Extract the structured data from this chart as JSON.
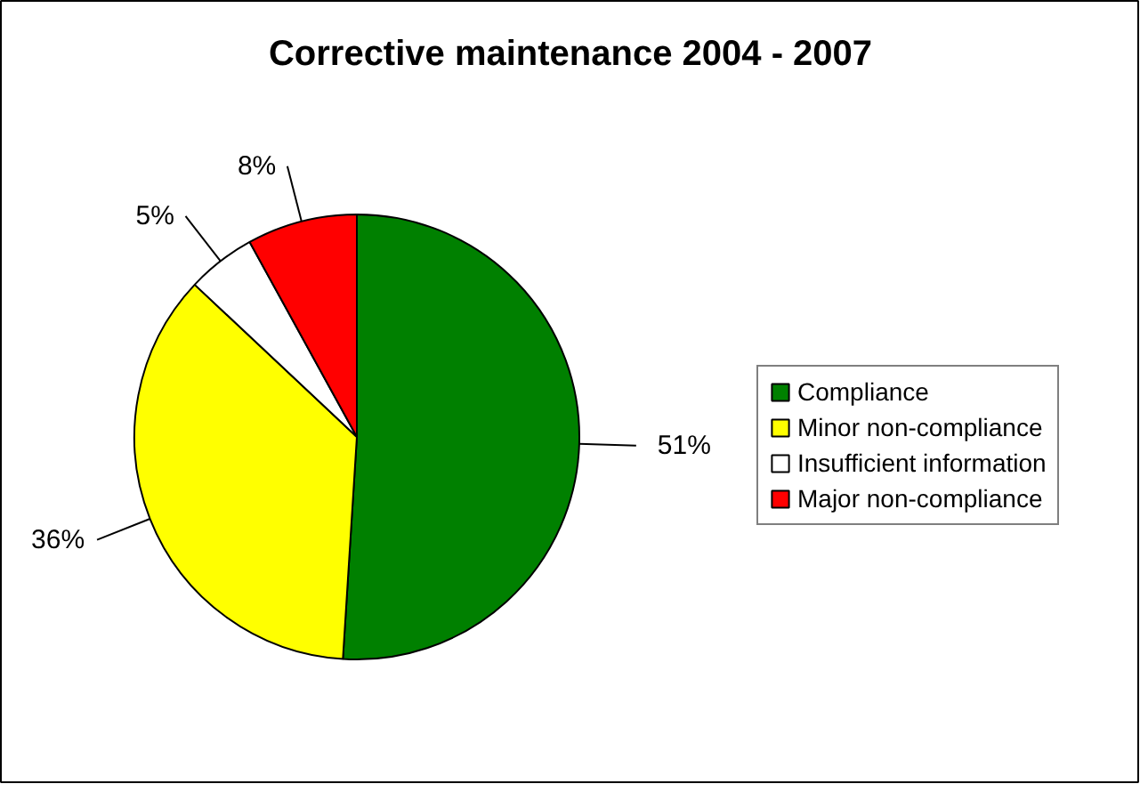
{
  "chart_data": {
    "type": "pie",
    "title": "Corrective maintenance 2004 - 2007",
    "categories": [
      "Compliance",
      "Minor non-compliance",
      "Insufficient information",
      "Major non-compliance"
    ],
    "values": [
      51,
      36,
      5,
      8
    ],
    "colors": [
      "#008000",
      "#ffff00",
      "#ffffff",
      "#ff0000"
    ],
    "value_labels": [
      "51%",
      "36%",
      "5%",
      "8%"
    ],
    "legend": "right"
  }
}
